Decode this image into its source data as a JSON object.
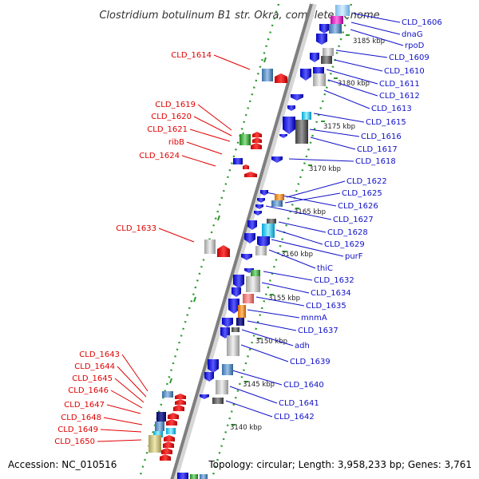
{
  "title": "Clostridium botulinum B1 str. Okra, complete genome",
  "footer": {
    "accession": "Accession: NC_010516",
    "summary": "Topology: circular; Length: 3,958,233 bp; Genes: 3,761"
  },
  "colors": {
    "backbone": "#7f7f7f",
    "dots": "#2e9a2e",
    "forward": "#e00000",
    "reverse": "#1010c8",
    "label_left": "#e00000",
    "label_right": "#1010c8"
  },
  "ticks": [
    {
      "label": "3185 kbp",
      "kbp": 3185
    },
    {
      "label": "3180 kbp",
      "kbp": 3180
    },
    {
      "label": "3175 kbp",
      "kbp": 3175
    },
    {
      "label": "3170 kbp",
      "kbp": 3170
    },
    {
      "label": "3165 kbp",
      "kbp": 3165
    },
    {
      "label": "3160 kbp",
      "kbp": 3160
    },
    {
      "label": "3155 kbp",
      "kbp": 3155
    },
    {
      "label": "3150 kbp",
      "kbp": 3150
    },
    {
      "label": "3145 kbp",
      "kbp": 3145
    },
    {
      "label": "3140 kbp",
      "kbp": 3140
    }
  ],
  "forward_labels": [
    "CLD_1614",
    "CLD_1619",
    "CLD_1620",
    "CLD_1621",
    "ribB",
    "CLD_1624",
    "CLD_1633",
    "CLD_1643",
    "CLD_1644",
    "CLD_1645",
    "CLD_1646",
    "CLD_1647",
    "CLD_1648",
    "CLD_1649",
    "CLD_1650"
  ],
  "reverse_labels": [
    "CLD_1606",
    "dnaG",
    "rpoD",
    "CLD_1609",
    "CLD_1610",
    "CLD_1611",
    "CLD_1612",
    "CLD_1613",
    "CLD_1615",
    "CLD_1616",
    "CLD_1617",
    "CLD_1618",
    "CLD_1622",
    "CLD_1625",
    "CLD_1626",
    "CLD_1627",
    "CLD_1628",
    "CLD_1629",
    "purF",
    "thiC",
    "CLD_1632",
    "CLD_1634",
    "CLD_1635",
    "mnmA",
    "CLD_1637",
    "adh",
    "CLD_1639",
    "CLD_1640",
    "CLD_1641",
    "CLD_1642"
  ]
}
